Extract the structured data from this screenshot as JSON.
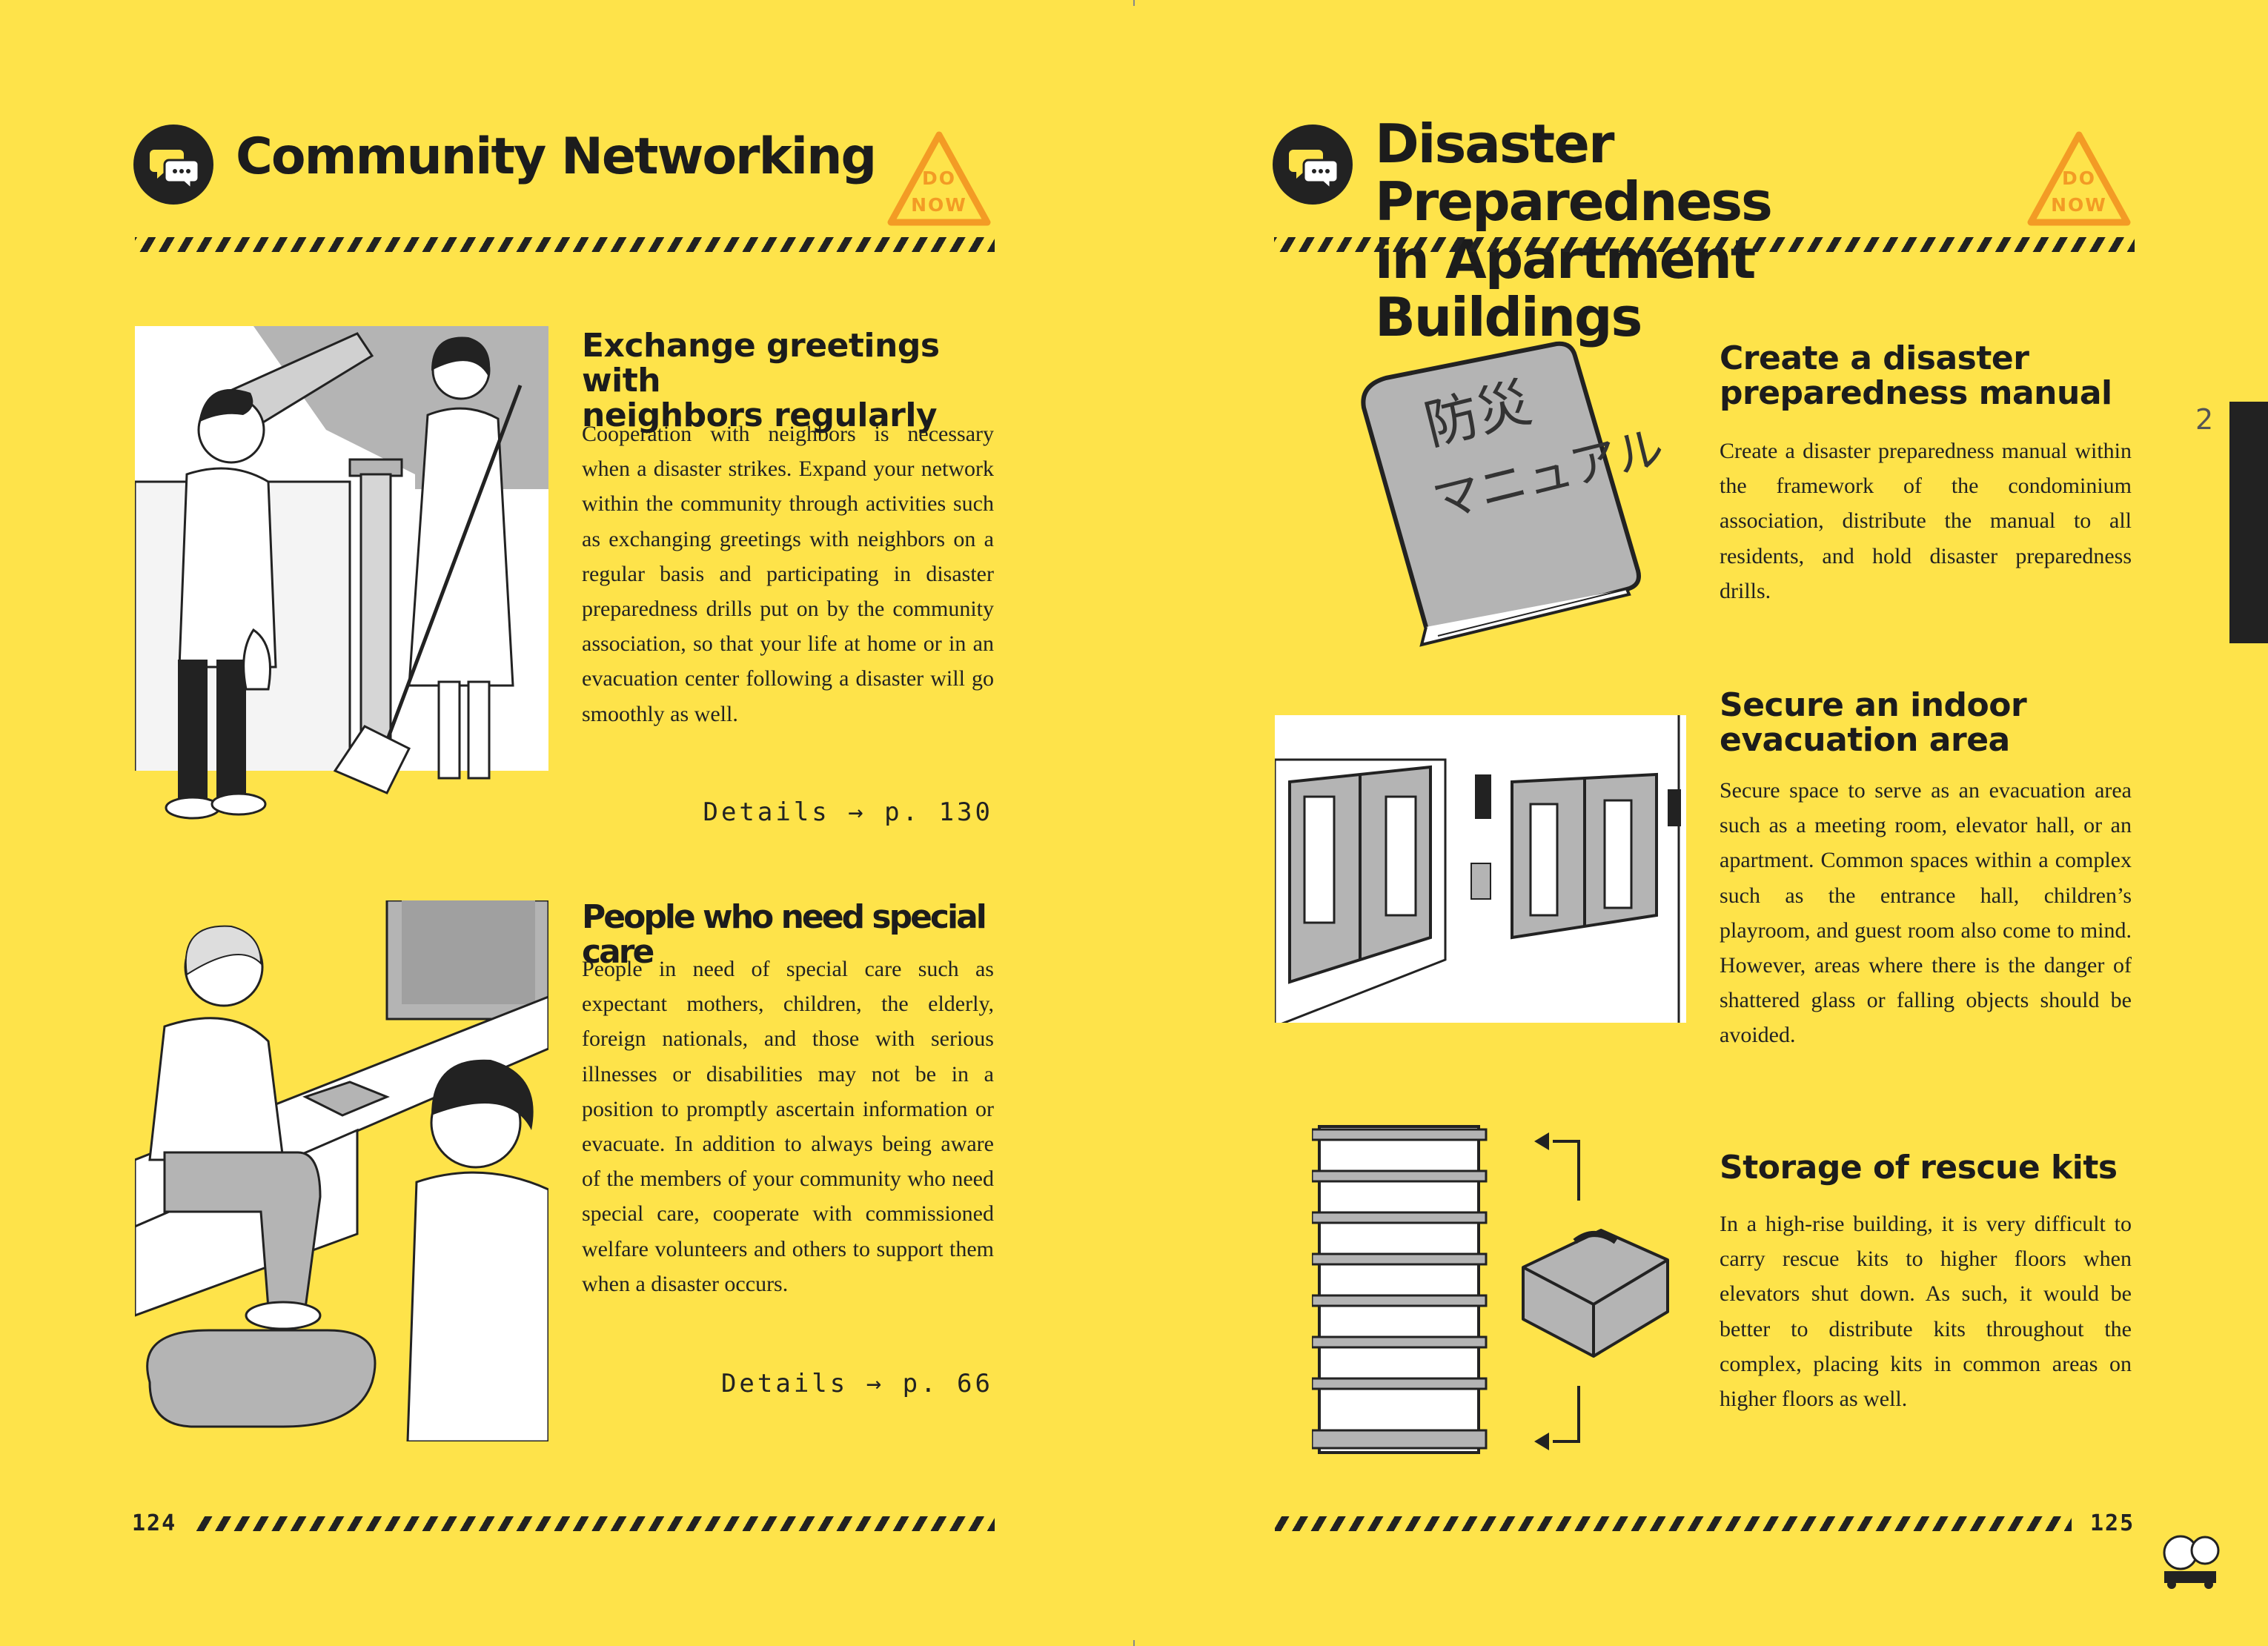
{
  "left_page": {
    "title": "Community Networking",
    "badge": {
      "line1": "DO",
      "line2": "NOW"
    },
    "section1": {
      "heading_line1": "Exchange greetings with",
      "heading_line2": "neighbors regularly",
      "body": "Cooperation with neighbors is necessary when a disaster strikes. Expand your network within the community through activities such as exchanging greetings with neighbors on a regular basis and participating in disaster preparedness drills put on by the community association, so that your life at home or in an evacuation center following a disaster will go smoothly as well.",
      "details": "Details → p. 130"
    },
    "section2": {
      "heading": "People who need special care",
      "body": "People in need of special care such as expectant mothers, children, the elderly, foreign nationals, and those with serious illnesses or disabilities may not be in a position to promptly ascertain information or evacuate. In addition to always being aware of the members of your community who need special care, cooperate with commissioned welfare volunteers and others to support them when a disaster occurs.",
      "details": "Details → p. 66"
    },
    "page_number": "124"
  },
  "right_page": {
    "title_line1": "Disaster Preparedness",
    "title_line2": "in Apartment Buildings",
    "badge": {
      "line1": "DO",
      "line2": "NOW"
    },
    "chapter_tab": "2",
    "section1": {
      "heading_line1": "Create a disaster",
      "heading_line2": "preparedness manual",
      "body": "Create a disaster preparedness manual within the framework of the condominium association, distribute the manual to all residents, and hold disaster preparedness drills.",
      "book_label_line1": "防災",
      "book_label_line2": "マニュアル"
    },
    "section2": {
      "heading_line1": "Secure an indoor",
      "heading_line2": "evacuation area",
      "body": "Secure space to serve as an evacuation area such as a meeting room, elevator hall, or an apartment. Common spaces within a complex such as the entrance hall, children’s playroom, and guest room also come to mind. However, areas where there is the danger of shattered glass or falling objects should be avoided."
    },
    "section3": {
      "heading": "Storage of rescue kits",
      "body": "In a high-rise building, it is very difficult to carry rescue kits to higher floors when elevators shut down. As such, it would be better to distribute kits throughout the complex, placing kits in common areas on higher floors as well."
    },
    "page_number": "125"
  },
  "colors": {
    "background": "#fee34a",
    "ink": "#222222",
    "accent_orange": "#f39b25",
    "illustration_gray": "#b4b4b4"
  },
  "icons": [
    "chat-bubbles-icon",
    "warning-triangle-icon",
    "mascot-icon"
  ]
}
